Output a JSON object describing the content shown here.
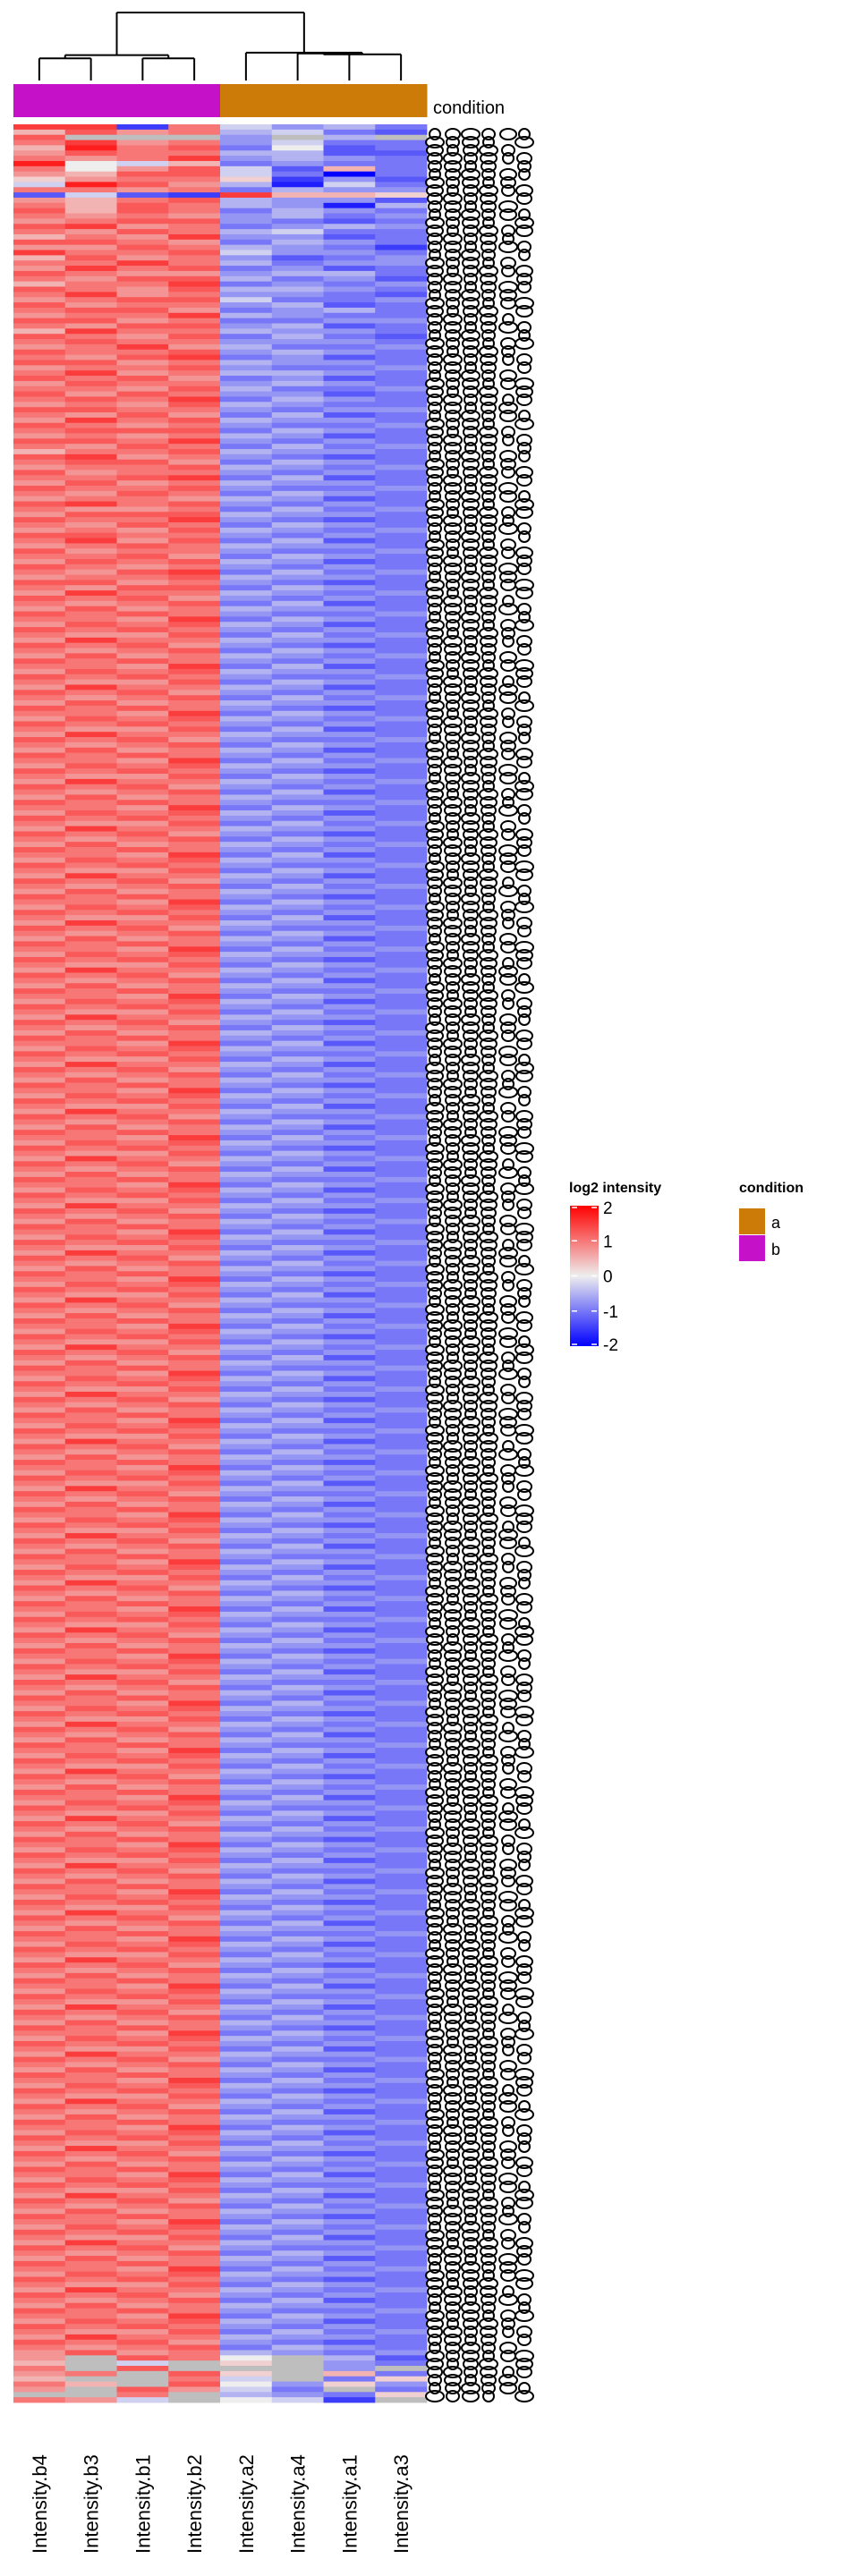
{
  "chart_data": {
    "type": "heatmap",
    "title": "",
    "columns": [
      "Intensity.b4",
      "Intensity.b3",
      "Intensity.b1",
      "Intensity.b2",
      "Intensity.a2",
      "Intensity.a4",
      "Intensity.a1",
      "Intensity.a3"
    ],
    "column_condition": [
      "b",
      "b",
      "b",
      "b",
      "a",
      "a",
      "a",
      "a"
    ],
    "annotation_label": "condition",
    "color_scale": {
      "title": "log2 intensity",
      "min": -2,
      "max": 2,
      "ticks": [
        "2",
        "1",
        "0",
        "-1",
        "-2"
      ],
      "tick_values": [
        2,
        1,
        0,
        -1,
        -2
      ],
      "low_color": "#0000ff",
      "mid_color": "#eeeeee",
      "high_color": "#ff0000",
      "na_color": "#bebebe"
    },
    "condition_legend": {
      "title": "condition",
      "items": [
        {
          "label": "a",
          "color": "#cd7b08"
        },
        {
          "label": "b",
          "color": "#c512c8"
        }
      ]
    },
    "dendrogram": {
      "merges": [
        {
          "left": "Intensity.b4",
          "right": "Intensity.b3",
          "height": 0.32
        },
        {
          "left": "Intensity.b1",
          "right": "Intensity.b2",
          "height": 0.32
        },
        {
          "left": "b4+b3",
          "right": "b1+b2",
          "height": 0.36
        },
        {
          "left": "Intensity.a4",
          "right": "Intensity.a1",
          "height": 0.38
        },
        {
          "left": "a4+a1",
          "right": "Intensity.a3",
          "height": 0.37
        },
        {
          "left": "Intensity.a2",
          "right": "a4+a1+a3",
          "height": 0.39
        },
        {
          "left": "b cluster",
          "right": "a cluster",
          "height": 1.0
        }
      ]
    },
    "row_labels_note": "overplotted protein IDs (illegible)",
    "value_encoding": "each char = -2 + 0.25*index in ABCDEFGHIJKLMNOPQ; '.' = NA",
    "rows": [
      "OOCMHFGE",
      "KNLMGHED",
      "N...F.G.",
      "MOLMFHEE",
      "KPMNEIDE",
      "LNMMGGDD",
      "MLMOFGFE",
      "PIHKEFEE",
      "MILNHDKE",
      "LKNNHEAE",
      "JLMMJCFD",
      "HPNLGBHE",
      "MMLMEGFF",
      "DHDCOKKJ",
      "LKMNGFFD",
      "MKNMGFBG",
      "NKNMEGFE",
      "MLMLFGEF",
      "LMNNFEDE",
      "NOLMEFGF",
      "MLNMGHEE",
      "KMLOFFDE",
      "NNMLEGFE",
      "LLNMGFEC",
      "OMMNHFFE",
      "KNLMFDEF",
      "MMOMGEFF",
      "LOMNEFDE",
      "NMLLFGGE",
      "MLNNGEFD",
      "KMMOEFEF",
      "NMLNGGFE",
      "MOLMFFED",
      "LMNNHEEF",
      "NLMMFGDE",
      "MNNLEFGE",
      "LMMOGFEE",
      "NNLMEEFF",
      "MLNNFGDE",
      "KOMMGFFE",
      "NMLNEGED",
      "MNMMFFFE",
      "LMOLGEEF",
      "NMMNFGFE",
      "MLNOEFDE",
      "NNLMGFFE",
      "LMMNFEEF",
      "MOLMGGFE",
      "NMNLEFDE",
      "LNMMFGFE",
      "MMLNGEEF",
      "NLNMFFDE",
      "MNMOEGFE",
      "LMLNGFEE",
      "NNMMFEFF",
      "MLNLEGDE",
      "LOMNGFFE",
      "NMLMFEEF",
      "MNNNEGFE",
      "LMLMGFDE",
      "NNMOFEFE",
      "MLNMEGEF",
      "KMMNGFFE",
      "NOLMFEDE",
      "MNNLEGFE",
      "LMMNGFEF",
      "NLMMFEFE",
      "MMNOEGDE",
      "LNLMGFFE",
      "NMMNFEEF",
      "MLNMEGFE",
      "LMMLGFDE",
      "NOMNFEFE",
      "MLLMEGEF",
      "LNNNGFFE",
      "NMMOFEDE",
      "MLNMEGFE",
      "LMLNGFEF",
      "NNMMFEFE",
      "MOLNEGDE",
      "LMNMGFFE",
      "NLMMFEEF",
      "MMNLEGFE",
      "LNMNGFDE",
      "NMLMFEFE",
      "MLNOEGEF",
      "LMMNGFFE",
      "NNLMFEDE",
      "MLNNEGFE",
      "LOMMGFEF",
      "NMNLFEFE",
      "MLMNEGDE",
      "LNLMGFFE",
      "NMNMFEEF",
      "MMLOEGFE",
      "LNMNGFDE",
      "NMNMFEFE",
      "MLLNEGEF",
      "LOMMGFFE",
      "NMNLFEDE",
      "MLMNEGFE",
      "LNLMGFEF",
      "NMNMFEFE",
      "MMLOEGDE",
      "LNMNGFFE",
      "NMNMFEEF",
      "MLLNEGFE",
      "LOMMGFDE",
      "NMNLFEFE",
      "MLMNEGEF",
      "LNLMGFFE",
      "NMNMFEDE",
      "MMLOEGFE",
      "LNMNGFEF",
      "NMNMFEFE",
      "MLLNEGDE",
      "LOMMGFFE",
      "NMNLFEEF",
      "MLMNEGFE",
      "LNLMGFDE",
      "NMNMFEFE",
      "MMLOEGEF",
      "LNMNGFFE",
      "NMNMFEDE",
      "MLLNEGFE",
      "LOMMGFEF",
      "NMNLFEFE",
      "MLMNEGDE",
      "LNLMGFFE",
      "NMNMFEEF",
      "MMLOEGFE",
      "LNMNGFDE",
      "NMNMFEFE",
      "MLLNEGEF",
      "LOMMGFFE",
      "NMNLFEDE",
      "MLMNEGFE",
      "LNLMGFEF",
      "NMNMFEFE",
      "MMLOEGDE",
      "LNMNGFFE",
      "NMNMFEEF",
      "MLLNEGFE",
      "LOMMGFDE",
      "NMNLFEFE",
      "MLMNEGEF",
      "LNLMGFFE",
      "NMNMFEDE",
      "MMLOEGFE",
      "LNMNGFEF",
      "NMNMFEFE",
      "MLLNEGDE",
      "LOMMGFFE",
      "NMNLFEEF",
      "MLMNEGFE",
      "LNLMGFDE",
      "NMNMFEFE",
      "MMLOEGEF",
      "LNMNGFFE",
      "NMNMFEDE",
      "MLLNEGFE",
      "LOMMGFEF",
      "NMNLFEFE",
      "MLMNEGDE",
      "LNLMGFFE",
      "NMNMFEEF",
      "MMLOEGFE",
      "LNMNGFDE",
      "NMNMFEFE",
      "MLLNEGEF",
      "LOMMGFFE",
      "NMNLFEDE",
      "MLMNEGFE",
      "LNLMGFEF",
      "NMNMFEFE",
      "MMLOEGDE",
      "LNMNGFFE",
      "NMNMFEEF",
      "MLLNEGFE",
      "LOMMGFDE",
      "NMNLFEFE",
      "MLMNEGEF",
      "LNLMGFFE",
      "NMNMFEDE",
      "MMLOEGFE",
      "LNMNGFEF",
      "NMNMFEFE",
      "MLLNEGDE",
      "LOMMGFFE",
      "NMNLFEEF",
      "MLMNEGFE",
      "LNLMGFDE",
      "NMNMFEFE",
      "MMLOEGEF",
      "LNMNGFFE",
      "NMNMFEDE",
      "MLLNEGFE",
      "LOMMGFEF",
      "NMNLFEFE",
      "MLMNEGDE",
      "LNLMGFFE",
      "NMNMFEEF",
      "MMLOEGFE",
      "LNMNGFDE",
      "NMNMFEFE",
      "MLLNEGEF",
      "LOMMGFFE",
      "NMNLFEDE",
      "MLMNEGFE",
      "LNLMGFEF",
      "NMNMFEFE",
      "MMLOEGDE",
      "LNMNGFFE",
      "NMNMFEEF",
      "MLLNEGFE",
      "LOMMGFDE",
      "NMNLFEFE",
      "MLMNEGEF",
      "LNLMGFFE",
      "NMNMFEDE",
      "MMLOEGFE",
      "LNMNGFEF",
      "NMNMFEFE",
      "MLLNEGDE",
      "LOMMGFFE",
      "NMNLFEEF",
      "MLMNEGFE",
      "LNLMGFDE",
      "NMNMFEFE",
      "MMLOEGEF",
      "LNMNGFFE",
      "NMNMFEDE",
      "MLLNEGFE",
      "LOMMGFEF",
      "NMNLFEFE",
      "MLMNEGDE",
      "LNLMGFFE",
      "NMNMFEEF",
      "MMLOEGFE",
      "LNMNGFDE",
      "NMNMFEFE",
      "MLLNEGEF",
      "LOMMGFFE",
      "NMNLFEDE",
      "MLMNEGFE",
      "LNLMGFEF",
      "NMNMFEFE",
      "MMLOEGDE",
      "LNMNGFFE",
      "NMNMFEEF",
      "MLLNEGFE",
      "LOMMGFDE",
      "NMNLFEFE",
      "MLMNEGEF",
      "LNLMGFFE",
      "NMNMFEDE",
      "MMLOEGFE",
      "LNMNGFEF",
      "NMNMFEFE",
      "MLLNEGDE",
      "LOMMGFFE",
      "NMNLFEEF",
      "MLMNEGFE",
      "LNLMGFDE",
      "NMNMFEFE",
      "MMLOEGEF",
      "LNMNGFFE",
      "NMNMFEDE",
      "MLLNEGFE",
      "LOMMGFEF",
      "NMNLFEFE",
      "MLMNEGDE",
      "LNLMGFFE",
      "NMNMFEEF",
      "MMLOEGFE",
      "LNMNGFDE",
      "NMNMFEFE",
      "MLLNEGEF",
      "LOMMGFFE",
      "NMNLFEDE",
      "MLMNEGFE",
      "LNLMGFEF",
      "NMNMFEFE",
      "MMLOEGDE",
      "LNMNGFFE",
      "NMNMFEEF",
      "MLLNEGFE",
      "LOMMGFDE",
      "NMNLFEFE",
      "MLMNEGEF",
      "LNLMGFFE",
      "NMNMFEDE",
      "MMLOEGFE",
      "LNMNGFEF",
      "NMNMFEFE",
      "MLLNEGDE",
      "LOMMGFFE",
      "NMNLFEEF",
      "MLMNEGFE",
      "LNLMGFDE",
      "NMNMFEFE",
      "MMLOEGEF",
      "LNMNGFFE",
      "NMNMFEDE",
      "MLLNEGFE",
      "LOMMGFEF",
      "NMNLFEFE",
      "MLMNEGDE",
      "LNLMGFFE",
      "NMNMFEEF",
      "MMLOEGFE",
      "LNMNGFDE",
      "NMNMFEFE",
      "MLLNEGEF",
      "LOMMGFFE",
      "NMNLFEDE",
      "MLMNEGFE",
      "LNLMGFEF",
      "NMNMFEFE",
      "MMLOEGDE",
      "LNMNGFFE",
      "NMNMFEEF",
      "MLLNEGFE",
      "LOMMGFDE",
      "NMNLFEFE",
      "MLMNEGEF",
      "LNLMGFFE",
      "NMNMFEDE",
      "MMLOEGFE",
      "LNMNGFEF",
      "NMNMFEFE",
      "MLLNEGDE",
      "LOMMGFFE",
      "NMNLFEEF",
      "MLMNEGFE",
      "LNLMGFDE",
      "NMNMFEFE",
      "MMLOEGEF",
      "LNMNGFFE",
      "NMNMFEDE",
      "MLLNEGFE",
      "LOMMGFEF",
      "NMNLFEFE",
      "MLMNEGDE",
      "LNLMGFFE",
      "NMNMFEEF",
      "MMLOEGFE",
      "LNMNGFDE",
      "NMNMFEFE",
      "MLLNEGEF",
      "LOMMGFFE",
      "NMNLFEDE",
      "MLMNEGFE",
      "LNLMGFEF",
      "NMNMFEFE",
      "MMLOEGDE",
      "LNMNGFFE",
      "NMNMFEEF",
      "MLLNEGFE",
      "LOMMGFDE",
      "NMNLFEFE",
      "MLMNEGEF",
      "LNLMGFFE",
      "NMNMFEDE",
      "MMLOEGFE",
      "LNMNGFEF",
      "NMNMFEFE",
      "MLLNEGDE",
      "LOMMGFFE",
      "NMNLFEEF",
      "MLMNEGFE",
      "LNLMGFDE",
      "NMNMFEFE",
      "MMLOEGEF",
      "LNMNGFFE",
      "NMNMFEDE",
      "MLLNEGFE",
      "LOMMGFEF",
      "NMNLFEFE",
      "MLMNEGDE",
      "LNLMGFFE",
      "NMNMFEEF",
      "MMLOEGFE",
      "LNMNGFDE",
      "NMNMFEFE",
      "MLLNEGEF",
      "LOMMGFFE",
      "NMNLFEDE",
      "MLMNEGFE",
      "LNLMGFEF",
      "NMNMFEFE",
      "MMLOEGDE",
      "LNMNGFFE",
      "NMNMFEEF",
      "MLLNEGFE",
      "LOMMGFDE",
      "NMNLFEFE",
      "MLMNEGEF",
      "LNLMGFFE",
      "NMNMFEDE",
      "MMLOEGFE",
      "LNMNGFEF",
      "NMNMFEFE",
      "MLLNEGDE",
      "LOMMGFFE",
      "NMNLFEEF",
      "MLMNEGFE",
      "LNLMGFDE",
      "NMNMFEFE",
      "MMLOEGEF",
      "LNMNGFFE",
      "NMNMFEDE",
      "MLLNEGFE",
      "LOMMGFEF",
      "NMNLFEFE",
      "MLMNEGDE",
      "LNLMGFFE",
      "NMNMFEEF",
      "MMLOEGFE",
      "LNMNGFDE",
      "NMNMFEFE",
      "MLLNEGEF",
      "LOMMGFFE",
      "NMNLFEDE",
      "MLMNEGFE",
      "LNLMGFEF",
      "L.NMI.GD",
      "K.H.J.FE",
      "M.N...F.",
      "LM.NJ.KE",
      "K..MH.EJ",
      "MK.NIFJF",
      "L.NLHE.E",
      "..M.GFEJ",
      "MLH.IHC."
    ]
  }
}
